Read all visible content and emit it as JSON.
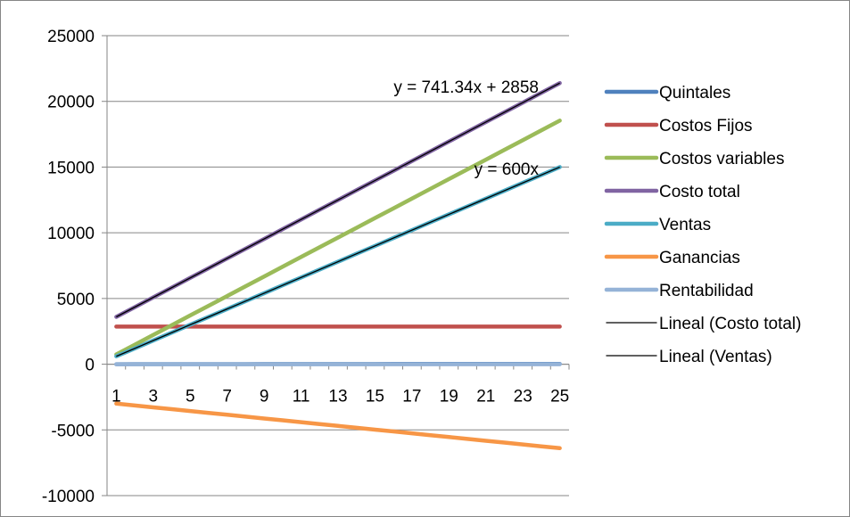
{
  "chart_data": {
    "type": "line",
    "title": "",
    "xlabel": "",
    "ylabel": "",
    "categories": [
      "1",
      "2",
      "3",
      "4",
      "5",
      "6",
      "7",
      "8",
      "9",
      "10",
      "11",
      "12",
      "13",
      "14",
      "15",
      "16",
      "17",
      "18",
      "19",
      "20",
      "21",
      "22",
      "23",
      "24",
      "25"
    ],
    "x_tick_labels": [
      "1",
      "3",
      "5",
      "7",
      "9",
      "11",
      "13",
      "15",
      "17",
      "19",
      "21",
      "23",
      "25"
    ],
    "y_tick_labels": [
      "25000",
      "20000",
      "15000",
      "10000",
      "5000",
      "0",
      "-5000",
      "-10000"
    ],
    "ylim": [
      -10000,
      25000
    ],
    "y_step": 5000,
    "grid": "horizontal major gridlines",
    "legend_position": "right",
    "series": [
      {
        "name": "Quintales",
        "color": "#4F81BD",
        "values": [
          1,
          2,
          3,
          4,
          5,
          6,
          7,
          8,
          9,
          10,
          11,
          12,
          13,
          14,
          15,
          16,
          17,
          18,
          19,
          20,
          21,
          22,
          23,
          24,
          25
        ]
      },
      {
        "name": "Costos Fijos",
        "color": "#C0504D",
        "values": [
          2858,
          2858,
          2858,
          2858,
          2858,
          2858,
          2858,
          2858,
          2858,
          2858,
          2858,
          2858,
          2858,
          2858,
          2858,
          2858,
          2858,
          2858,
          2858,
          2858,
          2858,
          2858,
          2858,
          2858,
          2858
        ]
      },
      {
        "name": "Costos variables",
        "color": "#9BBB59",
        "values": [
          741,
          1483,
          2224,
          2965,
          3707,
          4448,
          5189,
          5931,
          6672,
          7413,
          8155,
          8896,
          9637,
          10379,
          11120,
          11861,
          12603,
          13344,
          14085,
          14827,
          15568,
          16309,
          17051,
          17792,
          18534
        ]
      },
      {
        "name": "Costo total",
        "color": "#8064A2",
        "values": [
          3599,
          4341,
          5082,
          5823,
          6565,
          7306,
          8047,
          8789,
          9530,
          10271,
          11013,
          11754,
          12495,
          13237,
          13978,
          14719,
          15461,
          16202,
          16943,
          17685,
          18426,
          19167,
          19909,
          20650,
          21392
        ]
      },
      {
        "name": "Ventas",
        "color": "#4BACC6",
        "values": [
          600,
          1200,
          1800,
          2400,
          3000,
          3600,
          4200,
          4800,
          5400,
          6000,
          6600,
          7200,
          7800,
          8400,
          9000,
          9600,
          10200,
          10800,
          11400,
          12000,
          12600,
          13200,
          13800,
          14400,
          15000
        ]
      },
      {
        "name": "Ganancias",
        "color": "#F79646",
        "values": [
          -2999,
          -3141,
          -3282,
          -3423,
          -3565,
          -3706,
          -3847,
          -3989,
          -4130,
          -4271,
          -4413,
          -4554,
          -4695,
          -4837,
          -4978,
          -5119,
          -5261,
          -5402,
          -5543,
          -5685,
          -5826,
          -5967,
          -6109,
          -6250,
          -6392
        ]
      },
      {
        "name": "Rentabilidad",
        "color": "#95B3D7",
        "values": [
          -0.83,
          -0.72,
          -0.65,
          -0.59,
          -0.54,
          -0.51,
          -0.47,
          -0.45,
          -0.43,
          -0.42,
          -0.4,
          -0.39,
          -0.38,
          -0.37,
          -0.36,
          -0.35,
          -0.34,
          -0.33,
          -0.33,
          -0.32,
          -0.32,
          -0.31,
          -0.31,
          -0.3,
          -0.3
        ]
      }
    ],
    "trendlines": [
      {
        "name": "Lineal (Costo total)",
        "of": "Costo total",
        "slope": 741.34,
        "intercept": 2858,
        "color": "#000000",
        "equation": "y = 741.34x + 2858"
      },
      {
        "name": "Lineal (Ventas)",
        "of": "Ventas",
        "slope": 600,
        "intercept": 0,
        "color": "#000000",
        "equation": "y = 600x"
      }
    ]
  }
}
